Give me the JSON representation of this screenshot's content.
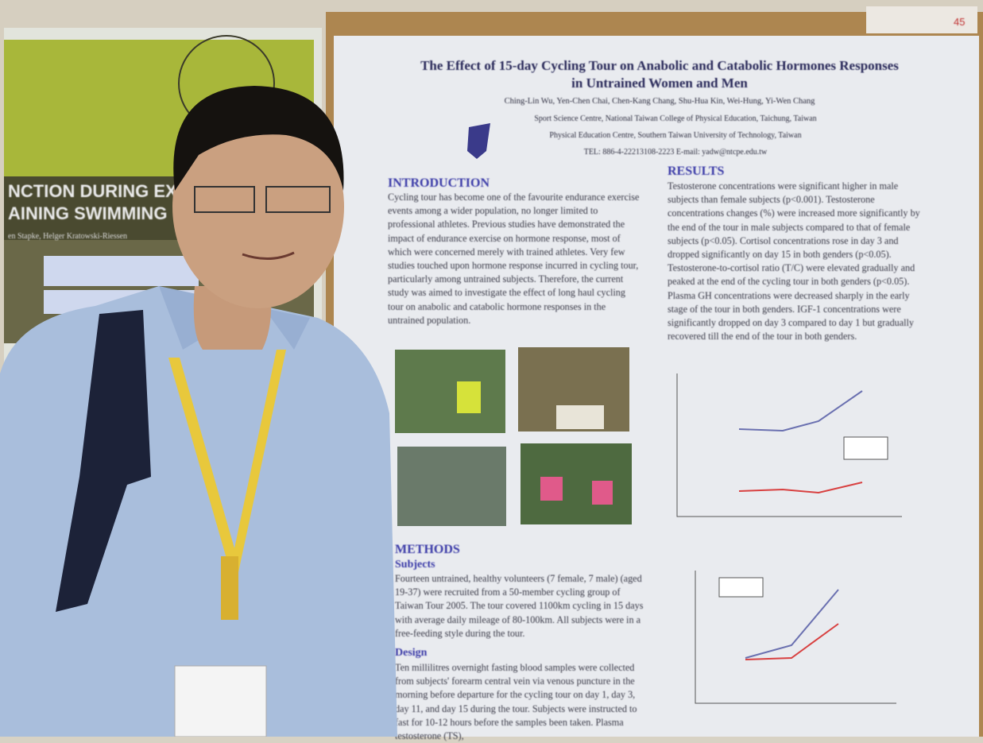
{
  "left_poster": {
    "title_line1": "NCTION DURING EXT",
    "title_line2": "AINING SWIMMING",
    "authors": "en Stapke, Helger Kratowski-Riessen"
  },
  "poster": {
    "title": "The Effect of 15-day Cycling Tour on Anabolic and Catabolic Hormones Responses in Untrained Women and Men",
    "authors": "Ching-Lin Wu, Yen-Chen Chai, Chen-Kang Chang, Shu-Hua Kin, Wei-Hung, Yi-Wen Chang",
    "affiliation1": "Sport Science Centre, National Taiwan College of Physical Education, Taichung, Taiwan",
    "affiliation2": "Physical Education Centre, Southern Taiwan University of Technology, Taiwan",
    "contact": "TEL: 886-4-22213108-2223   E-mail: yadw@ntcpe.edu.tw",
    "introduction": {
      "heading": "INTRODUCTION",
      "text": "Cycling tour has become one of the favourite endurance exercise events among a wider population, no longer limited to professional athletes. Previous studies have demonstrated the impact of endurance exercise on hormone response, most of which were concerned merely with trained athletes. Very few studies touched upon hormone response incurred in cycling tour, particularly among untrained subjects. Therefore, the current study was aimed to investigate the effect of long haul cycling tour on anabolic and catabolic hormone responses in the untrained population."
    },
    "results": {
      "heading": "RESULTS",
      "text": "Testosterone concentrations were significant higher in male subjects than female subjects (p<0.001). Testosterone concentrations changes (%) were increased more significantly by the end of the tour in male subjects compared to that of female subjects (p<0.05). Cortisol concentrations rose in day 3 and dropped significantly on day 15 in both genders (p<0.05). Testosterone-to-cortisol ratio (T/C) were elevated gradually and peaked at the end of the cycling tour in both genders (p<0.05). Plasma GH concentrations were decreased sharply in the early stage of the tour in both genders. IGF-1 concentrations were significantly dropped on day 3 compared to day 1 but gradually recovered till the end of the tour in both genders."
    },
    "methods": {
      "heading": "METHODS",
      "subjects_heading": "Subjects",
      "subjects_text": "Fourteen untrained, healthy volunteers (7 female, 7 male) (aged 19-37) were recruited from a 50-member cycling group of Taiwan Tour 2005. The tour covered 1100km cycling in 15 days with average daily mileage of 80-100km. All subjects were in a free-feeding style during the tour.",
      "design_heading": "Design",
      "design_text": "Ten millilitres overnight fasting blood samples were collected from subjects' forearm central vein via venous puncture in the morning before departure for the cycling tour on day 1, day 3, day 11, and day 15 during the tour. Subjects were instructed to fast for 10-12 hours before the samples been taken. Plasma testosterone (TS),"
    }
  },
  "board_tag": "45"
}
